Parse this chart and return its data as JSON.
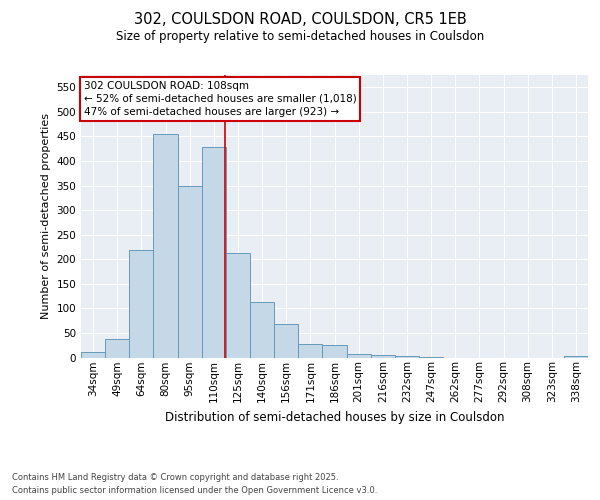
{
  "title_line1": "302, COULSDON ROAD, COULSDON, CR5 1EB",
  "title_line2": "Size of property relative to semi-detached houses in Coulsdon",
  "xlabel": "Distribution of semi-detached houses by size in Coulsdon",
  "ylabel": "Number of semi-detached properties",
  "categories": [
    "34sqm",
    "49sqm",
    "64sqm",
    "80sqm",
    "95sqm",
    "110sqm",
    "125sqm",
    "140sqm",
    "156sqm",
    "171sqm",
    "186sqm",
    "201sqm",
    "216sqm",
    "232sqm",
    "247sqm",
    "262sqm",
    "277sqm",
    "292sqm",
    "308sqm",
    "323sqm",
    "338sqm"
  ],
  "bar_heights": [
    12,
    38,
    218,
    455,
    350,
    428,
    213,
    113,
    68,
    28,
    25,
    8,
    5,
    3,
    2,
    0,
    0,
    0,
    0,
    0,
    3
  ],
  "bar_color": "#c5d8e8",
  "bar_edge_color": "#6699bb",
  "vline_color": "#cc0000",
  "vline_pos": 5.45,
  "annotation_title": "302 COULSDON ROAD: 108sqm",
  "annotation_line1": "← 52% of semi-detached houses are smaller (1,018)",
  "annotation_line2": "47% of semi-detached houses are larger (923) →",
  "annotation_box_color": "#cc0000",
  "ylim": [
    0,
    575
  ],
  "yticks": [
    0,
    50,
    100,
    150,
    200,
    250,
    300,
    350,
    400,
    450,
    500,
    550
  ],
  "footer_line1": "Contains HM Land Registry data © Crown copyright and database right 2025.",
  "footer_line2": "Contains public sector information licensed under the Open Government Licence v3.0.",
  "bg_color": "#e8eef4",
  "fig_bg_color": "#ffffff"
}
